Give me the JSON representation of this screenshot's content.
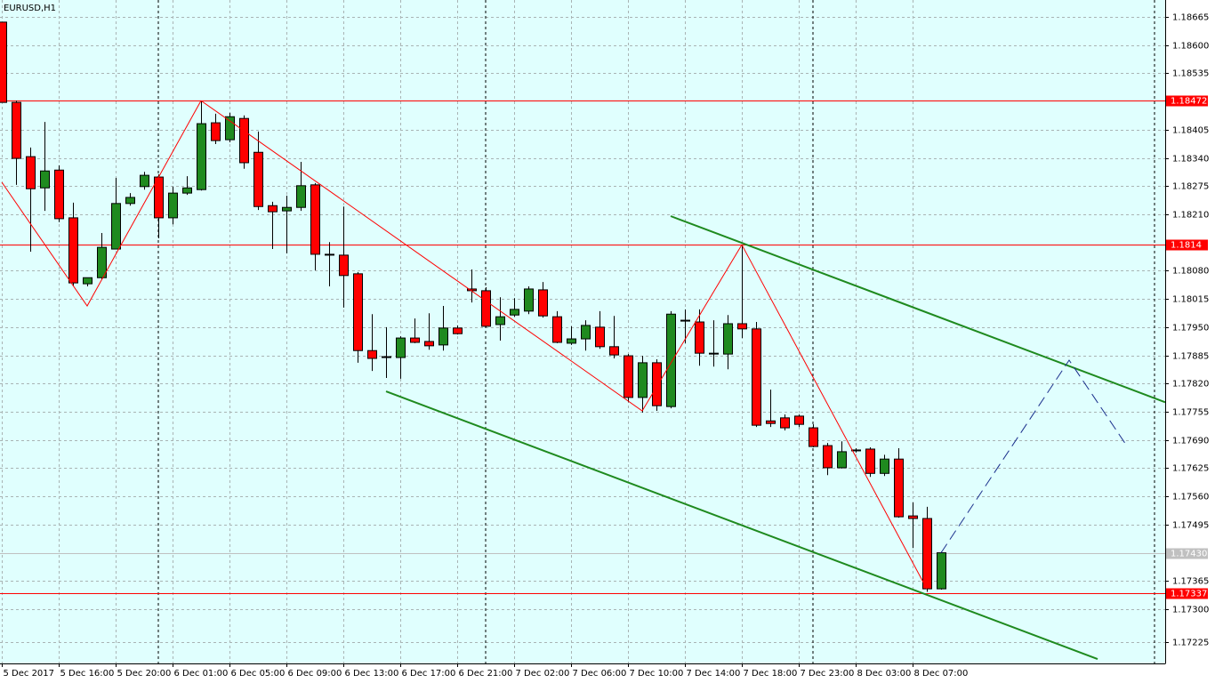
{
  "chart_data": {
    "type": "candlestick",
    "title": "EURUSD,H1",
    "categories": [
      "5 Dec 2017",
      null,
      null,
      null,
      "5 Dec 16:00",
      null,
      null,
      null,
      "5 Dec 20:00",
      null,
      null,
      null,
      "6 Dec 01:00",
      null,
      null,
      null,
      "6 Dec 05:00",
      null,
      null,
      null,
      "6 Dec 09:00",
      null,
      null,
      null,
      "6 Dec 13:00",
      null,
      null,
      null,
      "6 Dec 17:00",
      null,
      null,
      null,
      "6 Dec 21:00",
      null,
      null,
      null,
      "7 Dec 02:00",
      null,
      null,
      null,
      "7 Dec 06:00",
      null,
      null,
      null,
      "7 Dec 10:00",
      null,
      null,
      null,
      "7 Dec 14:00",
      null,
      null,
      null,
      "7 Dec 18:00",
      null,
      null,
      null,
      "7 Dec 23:00",
      null,
      null,
      null,
      "8 Dec 03:00",
      null,
      null,
      null,
      "8 Dec 07:00",
      null,
      null
    ],
    "open": [
      1.18653,
      1.18468,
      1.18343,
      1.18271,
      1.18312,
      1.18202,
      1.1805,
      1.18064,
      1.1813,
      1.18235,
      1.18274,
      1.18296,
      1.18202,
      1.18259,
      1.18267,
      1.18421,
      1.18382,
      1.18431,
      1.18353,
      1.1823,
      1.18218,
      1.18226,
      1.18278,
      1.18118,
      1.18116,
      1.18073,
      1.17896,
      1.1788,
      1.1788,
      1.17925,
      1.17917,
      1.17909,
      1.17948,
      1.18038,
      1.18034,
      1.17956,
      1.17978,
      1.17987,
      1.18036,
      1.17974,
      1.17913,
      1.17923,
      1.1795,
      1.17905,
      1.17884,
      1.17788,
      1.17868,
      1.17767,
      1.17964,
      1.17962,
      1.17888,
      1.17888,
      1.17958,
      1.17946,
      1.17734,
      1.17741,
      1.17745,
      1.17718,
      1.17677,
      1.17626,
      1.17665,
      1.17669,
      1.17613,
      1.17646,
      1.17515,
      1.17509,
      1.17347
    ],
    "high": [
      1.18653,
      1.18472,
      1.18364,
      1.18423,
      1.18323,
      1.18237,
      1.18064,
      1.18167,
      1.18294,
      1.18259,
      1.18308,
      1.18302,
      1.18274,
      1.18298,
      1.18472,
      1.18442,
      1.18444,
      1.18438,
      1.18401,
      1.18239,
      1.18253,
      1.18331,
      1.18282,
      1.18146,
      1.18228,
      1.18077,
      1.1798,
      1.1795,
      1.17929,
      1.1797,
      1.17982,
      1.17999,
      1.17954,
      1.18083,
      1.18042,
      1.18019,
      1.18017,
      1.18044,
      1.18054,
      1.17987,
      1.17952,
      1.17966,
      1.17987,
      1.17976,
      1.17888,
      1.17884,
      1.17876,
      1.17987,
      1.17991,
      1.17991,
      1.17966,
      1.17978,
      1.1814,
      1.17962,
      1.17806,
      1.17749,
      1.17749,
      1.17726,
      1.17683,
      1.17687,
      1.17671,
      1.17673,
      1.17656,
      1.17671,
      1.17546,
      1.17536,
      1.17433
    ],
    "low": [
      1.18468,
      1.18278,
      1.18124,
      1.18218,
      1.18192,
      1.18044,
      1.18044,
      1.1806,
      1.1813,
      1.1823,
      1.18267,
      1.18155,
      1.18187,
      1.18255,
      1.18265,
      1.18372,
      1.18376,
      1.18315,
      1.1822,
      1.1813,
      1.1812,
      1.18218,
      1.18081,
      1.18044,
      1.17995,
      1.17868,
      1.17849,
      1.17833,
      1.17831,
      1.17913,
      1.17898,
      1.17896,
      1.17933,
      1.18007,
      1.1795,
      1.17919,
      1.17974,
      1.1798,
      1.17972,
      1.17913,
      1.17909,
      1.17896,
      1.179,
      1.17878,
      1.17777,
      1.17753,
      1.17757,
      1.17763,
      1.17913,
      1.17861,
      1.17859,
      1.17853,
      1.17925,
      1.1772,
      1.1772,
      1.17712,
      1.1772,
      1.17673,
      1.17609,
      1.17624,
      1.17661,
      1.17605,
      1.17607,
      1.17511,
      1.17441,
      1.1734,
      1.17345
    ],
    "close": [
      1.18468,
      1.18339,
      1.18269,
      1.1831,
      1.182,
      1.18052,
      1.18064,
      1.18134,
      1.18235,
      1.18249,
      1.183,
      1.18202,
      1.18259,
      1.18271,
      1.18419,
      1.1838,
      1.18435,
      1.18329,
      1.18228,
      1.18216,
      1.18226,
      1.18276,
      1.18118,
      1.18116,
      1.18069,
      1.17896,
      1.17878,
      1.17882,
      1.17925,
      1.17915,
      1.17907,
      1.17948,
      1.17935,
      1.18034,
      1.17952,
      1.17974,
      1.17991,
      1.18038,
      1.17976,
      1.17915,
      1.17923,
      1.17954,
      1.17905,
      1.17886,
      1.17788,
      1.17868,
      1.17769,
      1.1798,
      1.17966,
      1.1789,
      1.1789,
      1.17958,
      1.17946,
      1.17724,
      1.17728,
      1.17718,
      1.17726,
      1.17675,
      1.17626,
      1.17663,
      1.17667,
      1.17613,
      1.17646,
      1.17513,
      1.17509,
      1.17347,
      1.1743
    ],
    "up_color": "#1f8a1f",
    "down_color": "#ff0000",
    "ylim": [
      1.17175,
      1.18704
    ],
    "yticks": [
      1.18665,
      {
        "value": 1.186,
        "label": "1.18600"
      },
      1.18535,
      1.18405,
      {
        "value": 1.1834,
        "label": "1.18340"
      },
      1.18275,
      {
        "value": 1.1821,
        "label": "1.18210"
      },
      {
        "value": 1.1808,
        "label": "1.18080"
      },
      1.18015,
      {
        "value": 1.1795,
        "label": "1.17950"
      },
      1.17885,
      {
        "value": 1.1782,
        "label": "1.17820"
      },
      1.17755,
      {
        "value": 1.1769,
        "label": "1.17690"
      },
      1.17625,
      {
        "value": 1.1756,
        "label": "1.17560"
      },
      1.17495,
      1.17365,
      {
        "value": 1.173,
        "label": "1.17300"
      },
      1.17225
    ],
    "grid": true,
    "levels": [
      {
        "value": 1.18472,
        "color": "#ff0000"
      },
      {
        "value": 1.1814,
        "color": "#ff0000"
      },
      {
        "value": 1.17337,
        "color": "#ff0000"
      }
    ],
    "bid_line": {
      "value": 1.1743,
      "label": "1.17430",
      "color": "#c0c0c0"
    },
    "lines": [
      {
        "color": "#ff0000",
        "width": 1,
        "dashed": false,
        "x": [
          0,
          6,
          14,
          45,
          52,
          65
        ],
        "y": [
          1.18284,
          1.17999,
          1.18472,
          1.17757,
          1.1814,
          1.17347
        ]
      },
      {
        "color": "#1f8a1f",
        "width": 2,
        "dashed": false,
        "x": [
          47,
          81.75
        ],
        "y": [
          1.18206,
          1.17777
        ]
      },
      {
        "color": "#1f8a1f",
        "width": 2,
        "dashed": false,
        "x": [
          27,
          77
        ],
        "y": [
          1.17802,
          1.17185
        ]
      },
      {
        "color": "#1a2f8c",
        "width": 1,
        "dashed": true,
        "x": [
          66,
          75,
          79
        ],
        "y": [
          1.1743,
          1.17874,
          1.17679
        ]
      }
    ]
  }
}
